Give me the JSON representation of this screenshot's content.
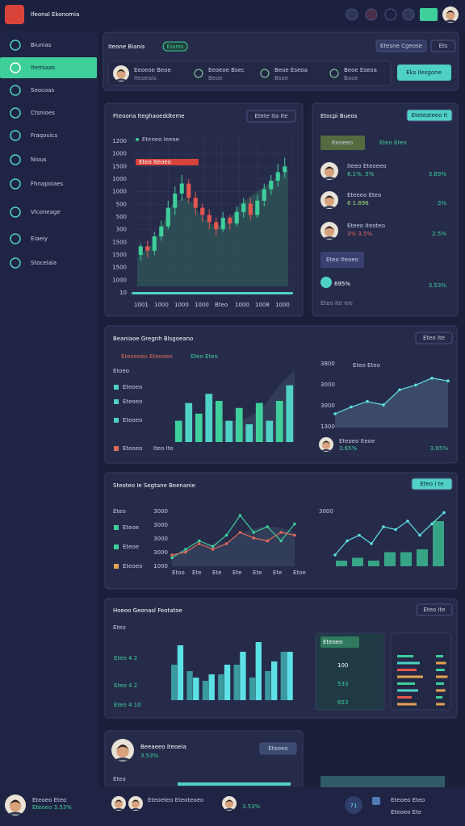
{
  "header": {
    "title": "Ifeonal Ekonomia"
  },
  "sidebar": {
    "items": [
      "Biunias",
      "Itemiaas",
      "Seocoas",
      "Ctsnioes",
      "Fraqouics",
      "Nious",
      "Fhnapoiaes",
      "Vlconeage",
      "Eiaeiy",
      "Stoceiaia"
    ]
  },
  "topbar": {
    "title": "Iteone Bianis",
    "badge": "Eianis",
    "buttons": [
      "Etesne Cgeose",
      "Ets"
    ],
    "stats": [
      {
        "label": "Eeoeoe Beoe",
        "sub": "Iteoeais"
      },
      {
        "label": "Eeoeoe Bsec",
        "sub": "Beoe"
      },
      {
        "label": "Beoe Eseoa",
        "sub": "Bsoe"
      },
      {
        "label": "Beoe Eseoa",
        "sub": "Baoe"
      }
    ],
    "action": "Eks Ilesgone"
  },
  "price_panel": {
    "title": "Fteoona Iteghaoeddteme",
    "button": "Etete Ita  Ite",
    "legend": "Eteneo Ieeae",
    "highlight": "Eteo Iteoeo",
    "ylabels": [
      "1200",
      "1000",
      "1500",
      "1000",
      "1000",
      "500",
      "500",
      "300",
      "1500",
      "1500",
      "1500",
      "1000",
      "10"
    ],
    "xlabels": [
      "1001",
      "1000",
      "1000",
      "1000",
      "Bteo",
      "1000",
      "1008",
      "1000"
    ],
    "ylim": [
      0,
      100
    ],
    "candles": [
      {
        "o": 22,
        "c": 28,
        "h": 30,
        "l": 18
      },
      {
        "o": 28,
        "c": 25,
        "h": 32,
        "l": 20
      },
      {
        "o": 25,
        "c": 35,
        "h": 38,
        "l": 22
      },
      {
        "o": 35,
        "c": 42,
        "h": 46,
        "l": 32
      },
      {
        "o": 42,
        "c": 55,
        "h": 60,
        "l": 40
      },
      {
        "o": 55,
        "c": 65,
        "h": 70,
        "l": 50
      },
      {
        "o": 65,
        "c": 72,
        "h": 78,
        "l": 60
      },
      {
        "o": 72,
        "c": 62,
        "h": 75,
        "l": 58
      },
      {
        "o": 62,
        "c": 55,
        "h": 66,
        "l": 50
      },
      {
        "o": 55,
        "c": 50,
        "h": 58,
        "l": 45
      },
      {
        "o": 50,
        "c": 45,
        "h": 54,
        "l": 40
      },
      {
        "o": 45,
        "c": 40,
        "h": 48,
        "l": 35
      },
      {
        "o": 40,
        "c": 48,
        "h": 52,
        "l": 38
      },
      {
        "o": 48,
        "c": 44,
        "h": 50,
        "l": 40
      },
      {
        "o": 44,
        "c": 52,
        "h": 56,
        "l": 42
      },
      {
        "o": 52,
        "c": 58,
        "h": 62,
        "l": 48
      },
      {
        "o": 58,
        "c": 50,
        "h": 62,
        "l": 46
      },
      {
        "o": 50,
        "c": 60,
        "h": 64,
        "l": 48
      },
      {
        "o": 60,
        "c": 68,
        "h": 72,
        "l": 56
      },
      {
        "o": 68,
        "c": 74,
        "h": 78,
        "l": 64
      },
      {
        "o": 74,
        "c": 80,
        "h": 86,
        "l": 70
      },
      {
        "o": 80,
        "c": 84,
        "h": 90,
        "l": 76
      }
    ],
    "area": [
      20,
      25,
      30,
      40,
      55,
      60,
      62,
      58,
      50,
      45,
      42,
      44,
      50,
      58,
      62,
      66,
      70,
      74,
      78,
      82
    ]
  },
  "people_panel": {
    "title": "Etocpi Bueos",
    "button": "Etetesteeo It",
    "tag": "Iteoeeo",
    "check": "Eteo Eteo",
    "people": [
      {
        "name": "Iteeo Eteoeeo",
        "value": "6.1%. 5%",
        "change": "3.69%"
      },
      {
        "name": "Eteeeo Eteo",
        "value": "6 1.696",
        "change": "3%"
      },
      {
        "name": "Eteeo Iteoteo",
        "value": "3% 3.5%",
        "change": "2.5%"
      }
    ],
    "box": "Eteo Iteoeo",
    "big": "695%",
    "small": "3.53%",
    "foot": "Eteo Ite Ioe"
  },
  "growth_panel": {
    "title": "Beaniaoe Gregnh Blsgoeano",
    "button": "Eteo Ite",
    "legends": [
      "Eteoeeeo Eteoeeo",
      "Eteo Eteo"
    ],
    "label": "Etoeo",
    "rows": [
      "Eteoeo",
      "Eteoeo",
      "Eteoeo",
      "Eteoeo"
    ],
    "bottom": "Iteo Ite",
    "ylim": [
      0,
      100
    ],
    "bars": [
      30,
      55,
      40,
      68,
      58,
      30,
      48,
      25,
      55,
      30,
      58,
      80
    ],
    "right_ylabels": [
      "3800",
      "3000",
      "3000",
      "1300"
    ],
    "right_legend": "Eteo Eteo",
    "area": [
      20,
      30,
      38,
      33,
      55,
      62,
      72,
      68
    ],
    "foot_name": "Eteoeo Iteoe",
    "foot_values": [
      "3.65%",
      "3.65%"
    ]
  },
  "segment_panel": {
    "title": "Steoteo Ie Segtane Beenanie",
    "button": "Eteo I te",
    "label": "Eteo",
    "rows": [
      "Eteoe",
      "Eteoe",
      "Eteoeo"
    ],
    "ylabels": [
      "3000",
      "3000",
      "3000",
      "3000",
      "1000"
    ],
    "ylim": [
      0,
      100
    ],
    "series": [
      {
        "name": "Eteoe",
        "color": "#3ecf9a",
        "values": [
          15,
          30,
          45,
          35,
          55,
          90,
          60,
          70,
          45,
          75
        ]
      },
      {
        "name": "Eteoe",
        "color": "#e46a5a",
        "values": [
          20,
          25,
          40,
          30,
          40,
          60,
          50,
          45,
          60,
          55
        ]
      }
    ],
    "right_line": [
      20,
      45,
      55,
      40,
      70,
      65,
      80,
      55,
      75,
      95
    ],
    "right_bars": [
      10,
      15,
      10,
      25,
      25,
      30,
      80
    ],
    "xlabels": [
      "Etoo",
      "Ete",
      "Ete",
      "Ete",
      "Ete",
      "Ete",
      "Etoe"
    ]
  },
  "general_panel": {
    "title": "Hoeoo Geonasl Feotatoe",
    "button": "Eteo Ite",
    "label": "Eteo",
    "rows": [
      "Eteo 4 2",
      "Eteo 4 2",
      "Eteo 4 10"
    ],
    "ylim": [
      0,
      100
    ],
    "series": [
      {
        "color": "#3a9aa0",
        "values": [
          55,
          45,
          30,
          40,
          55,
          35,
          45,
          75
        ]
      },
      {
        "color": "#5ce1e6",
        "values": [
          85,
          35,
          40,
          55,
          75,
          90,
          60,
          75
        ]
      }
    ],
    "box": "Eteoeo",
    "box_values": [
      "100",
      "533",
      "653"
    ],
    "mini_bars": [
      50,
      70,
      60,
      80,
      55,
      65,
      45,
      60
    ]
  },
  "profile_panel": {
    "name": "Beeaeeo Iteoeia",
    "value": "3.53%",
    "button": "Eteoeo",
    "label": "Eteo"
  },
  "bottom_bar": {
    "user": "Eteoeo Eteo",
    "user_sub": "Eteoeo 3.53%",
    "mid": "Eteoeteo Eteoteoeo",
    "mid_value": "3.53%",
    "badge": "71",
    "right": "Eteoeo Eteo",
    "right_sub": "Eteoeo Ete"
  }
}
